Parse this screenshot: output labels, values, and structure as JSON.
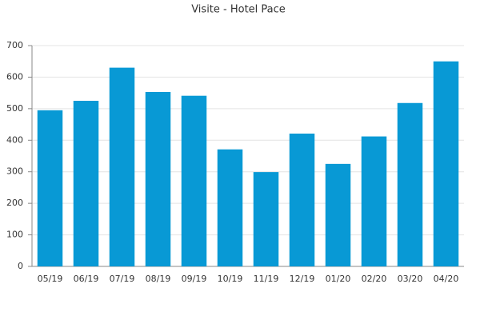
{
  "chart_data": {
    "type": "bar",
    "title": "Visite - Hotel Pace",
    "categories": [
      "05/19",
      "06/19",
      "07/19",
      "08/19",
      "09/19",
      "10/19",
      "11/19",
      "12/19",
      "01/20",
      "02/20",
      "03/20",
      "04/20"
    ],
    "values": [
      495,
      525,
      630,
      553,
      541,
      371,
      299,
      421,
      325,
      412,
      518,
      650
    ],
    "color": "#0899d5",
    "ylim": [
      0,
      700
    ],
    "yticks": [
      0,
      100,
      200,
      300,
      400,
      500,
      600,
      700
    ],
    "grid": true
  }
}
